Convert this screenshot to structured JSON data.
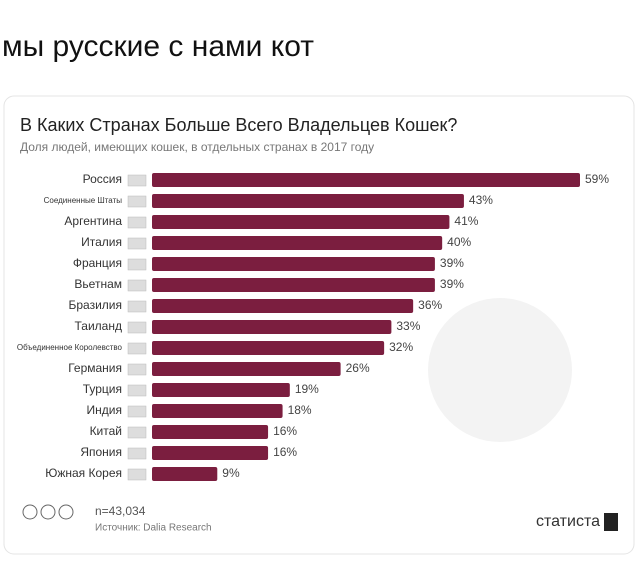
{
  "post": {
    "caption": "мы русские с нами кот"
  },
  "chart_data": {
    "type": "bar",
    "orientation": "horizontal",
    "title": "В Каких Странах Больше Всего Владельцев Кошек?",
    "subtitle": "Доля людей, имеющих кошек, в отдельных странах в 2017 году",
    "categories": [
      "Россия",
      "Соединенные Штаты",
      "Аргентина",
      "Италия",
      "Франция",
      "Вьетнам",
      "Бразилия",
      "Таиланд",
      "Объединенное Королевство",
      "Германия",
      "Турция",
      "Индия",
      "Китай",
      "Япония",
      "Южная Корея"
    ],
    "values": [
      59,
      43,
      41,
      40,
      39,
      39,
      36,
      33,
      32,
      26,
      19,
      18,
      16,
      16,
      9
    ],
    "value_labels": [
      "59%",
      "43%",
      "41%",
      "40%",
      "39%",
      "39%",
      "36%",
      "33%",
      "32%",
      "26%",
      "19%",
      "18%",
      "16%",
      "16%",
      "9%"
    ],
    "color": "#7b1e3f",
    "note": "n=43,034",
    "source": "Источник: Dalia Research",
    "brand": "статиста"
  }
}
